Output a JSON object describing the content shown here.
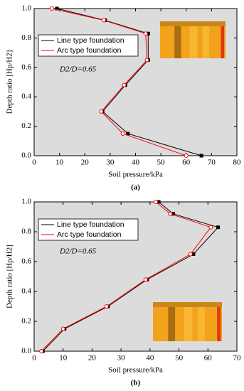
{
  "chart_data": [
    {
      "type": "line",
      "panel_label": "(a)",
      "xlabel": "Soil pressure/kPa",
      "ylabel": "Depth ratio [Hp/H2]",
      "annotation": "D2/D=0.65",
      "xlim": [
        0,
        80
      ],
      "xticks": [
        0,
        10,
        20,
        30,
        40,
        50,
        60,
        70,
        80
      ],
      "ylim": [
        0,
        1
      ],
      "yticks": [
        {
          "value": 0,
          "label": "0.0"
        },
        0.2,
        0.4,
        0.6,
        0.8,
        {
          "value": 1,
          "label": "1.0"
        }
      ],
      "y": [
        1.0,
        0.92,
        0.83,
        0.65,
        0.48,
        0.3,
        0.15,
        0.0
      ],
      "series": [
        {
          "name": "Line type foundation",
          "color": "#000000",
          "x": [
            9,
            28,
            45,
            45,
            36,
            27,
            37,
            66
          ]
        },
        {
          "name": "Arc type foundation",
          "color": "#ff0000",
          "x": [
            7,
            27.5,
            44,
            44.5,
            35.5,
            26.5,
            35,
            60
          ]
        }
      ]
    },
    {
      "type": "line",
      "panel_label": "(b)",
      "xlabel": "Soil pressure/kPa",
      "ylabel": "Depth ratio [Hp/H2]",
      "annotation": "D2/D=0.65",
      "xlim": [
        0,
        70
      ],
      "xticks": [
        0,
        10,
        20,
        30,
        40,
        50,
        60,
        70
      ],
      "ylim": [
        0,
        1
      ],
      "yticks": [
        {
          "value": 0,
          "label": "0.0"
        },
        0.2,
        0.4,
        0.6,
        0.8,
        {
          "value": 1,
          "label": "1.0"
        }
      ],
      "y": [
        1.0,
        0.92,
        0.83,
        0.65,
        0.48,
        0.3,
        0.15,
        0.0
      ],
      "series": [
        {
          "name": "Line type foundation",
          "color": "#000000",
          "x": [
            43,
            48,
            63.5,
            55,
            39,
            25.5,
            10.5,
            3
          ]
        },
        {
          "name": "Arc type foundation",
          "color": "#ff0000",
          "x": [
            42,
            47,
            61,
            54,
            38.5,
            25,
            10,
            2.5
          ]
        }
      ]
    }
  ]
}
